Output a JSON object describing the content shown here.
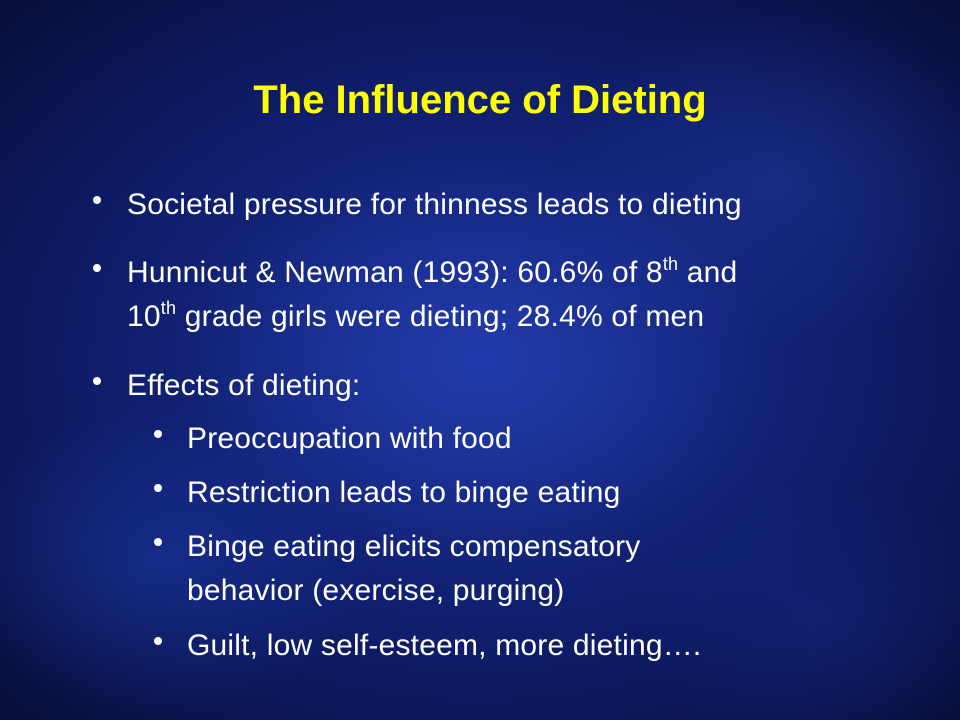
{
  "title": "The Influence of Dieting",
  "bullets": [
    {
      "text": "Societal pressure for thinness leads to dieting"
    },
    {
      "parts": [
        "Hunnicut & Newman (1993): 60.6% of 8",
        "th",
        " and",
        "10",
        "th",
        " grade girls were dieting; 28.4% of men"
      ]
    },
    {
      "text": "Effects of dieting:",
      "subbullets": [
        {
          "lines": [
            "Preoccupation with food"
          ]
        },
        {
          "lines": [
            "Restriction leads to binge eating"
          ]
        },
        {
          "lines": [
            "Binge eating elicits compensatory",
            "behavior (exercise, purging)"
          ]
        },
        {
          "lines": [
            "Guilt, low self-esteem, more dieting…."
          ]
        }
      ]
    }
  ]
}
